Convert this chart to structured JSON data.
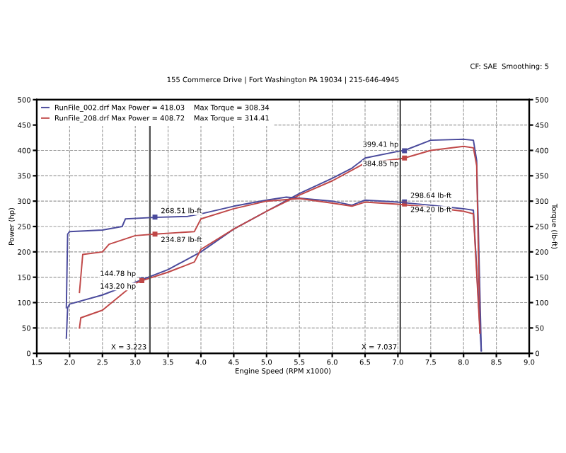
{
  "chart_data": {
    "type": "line",
    "subtitle": "155 Commerce Drive | Fort Washington PA 19034 | 215-646-4945",
    "xlabel": "Engine Speed (RPM x1000)",
    "ylabel": "Power (hp)",
    "y2label": "Torque (lb-ft)",
    "annotations": [
      "CF: SAE  Smoothing: 5",
      {
        "text": "144.78 hp",
        "x": 3.1,
        "y": 144.78
      },
      {
        "text": "143.20 hp",
        "x": 3.1,
        "y": 143.2
      },
      {
        "text": "268.51 lb-ft",
        "x": 3.3,
        "y": 268.51
      },
      {
        "text": "234.87 lb-ft",
        "x": 3.3,
        "y": 234.87
      },
      {
        "text": "399.41 hp",
        "x": 7.1,
        "y": 399.41
      },
      {
        "text": "384.85 hp",
        "x": 7.1,
        "y": 384.85
      },
      {
        "text": "298.64 lb-ft",
        "x": 7.1,
        "y": 298.64
      },
      {
        "text": "294.20 lb-ft",
        "x": 7.1,
        "y": 294.2
      }
    ],
    "series": [
      {
        "name": "RunFile_002.drf Max Power = 418.03    Max Torque = 308.34",
        "color": "#4a4a9c",
        "x": [
          1.95,
          1.97,
          2.0,
          2.5,
          3.0,
          3.1,
          3.5,
          4.0,
          4.5,
          5.0,
          5.5,
          6.0,
          6.3,
          6.5,
          7.0,
          7.1,
          7.5,
          8.0,
          8.15,
          8.2,
          8.27
        ],
        "values": [
          30,
          90,
          97,
          115,
          140,
          145,
          165,
          200,
          245,
          280,
          315,
          345,
          365,
          385,
          398,
          400,
          420,
          422,
          420,
          380,
          5
        ]
      },
      {
        "color": "#4a4a9c",
        "axis": "y2",
        "x": [
          1.95,
          1.97,
          2.0,
          2.5,
          2.8,
          2.85,
          3.3,
          3.8,
          4.0,
          4.5,
          5.0,
          5.3,
          5.5,
          6.0,
          6.3,
          6.5,
          7.0,
          7.5,
          8.0,
          8.15,
          8.27
        ],
        "values": [
          90,
          235,
          240,
          243,
          250,
          265,
          268,
          270,
          275,
          290,
          302,
          308,
          306,
          300,
          292,
          302,
          298,
          292,
          285,
          282,
          5
        ]
      },
      {
        "name": "RunFile_208.drf Max Power = 408.72    Max Torque = 314.41",
        "color": "#c04848",
        "x": [
          2.15,
          2.17,
          2.5,
          3.0,
          3.1,
          3.5,
          3.9,
          4.0,
          4.5,
          5.0,
          5.5,
          6.0,
          6.5,
          7.0,
          7.1,
          7.5,
          8.0,
          8.15,
          8.2,
          8.25
        ],
        "values": [
          50,
          70,
          85,
          138,
          143,
          160,
          180,
          205,
          245,
          280,
          312,
          340,
          375,
          383,
          385,
          400,
          408,
          405,
          370,
          40
        ]
      },
      {
        "color": "#c04848",
        "axis": "y2",
        "x": [
          2.15,
          2.2,
          2.5,
          2.6,
          3.0,
          3.3,
          3.9,
          4.0,
          4.5,
          5.0,
          5.5,
          6.0,
          6.3,
          6.5,
          7.0,
          7.5,
          8.0,
          8.15,
          8.25
        ],
        "values": [
          120,
          195,
          200,
          215,
          232,
          235,
          240,
          265,
          285,
          300,
          305,
          296,
          290,
          298,
          294,
          288,
          280,
          275,
          40
        ]
      }
    ],
    "ref_lines": [
      {
        "axis": "x",
        "value": 3.223,
        "label": "X = 3.223",
        "color": "#505050"
      },
      {
        "axis": "x",
        "value": 7.037,
        "label": "X = 7.037",
        "color": "#505050"
      }
    ],
    "xlim": [
      1.5,
      9.0
    ],
    "xticks": [
      1.5,
      {
        "value": 2,
        "label": "2.0"
      },
      2.5,
      {
        "value": 3,
        "label": "3.0"
      },
      3.5,
      {
        "value": 4,
        "label": "4.0"
      },
      4.5,
      {
        "value": 5,
        "label": "5.0"
      },
      5.5,
      {
        "value": 6,
        "label": "6.0"
      },
      6.5,
      {
        "value": 7,
        "label": "7.0"
      },
      7.5,
      {
        "value": 8,
        "label": "8.0"
      },
      8.5,
      {
        "value": 9,
        "label": "9.0"
      }
    ],
    "ylim": [
      0,
      500
    ],
    "yticks": [
      0,
      50,
      100,
      150,
      200,
      250,
      300,
      350,
      400,
      450,
      500
    ],
    "y2lim": [
      0,
      500
    ],
    "y2ticks": [
      0,
      50,
      100,
      150,
      200,
      250,
      300,
      350,
      400,
      450,
      500
    ],
    "grid": true,
    "legend": "top left",
    "marker": "none",
    "line_style": "solid"
  }
}
